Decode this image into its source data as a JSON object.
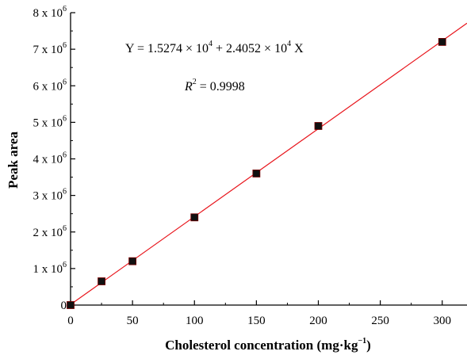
{
  "chart_data": {
    "type": "scatter",
    "xlabel": "Cholesterol concentration (mg·kg",
    "xlabel_sup": "−1",
    "xlabel_close": ")",
    "ylabel": "Peak area",
    "xlim": [
      0,
      320
    ],
    "ylim": [
      0,
      8000000
    ],
    "x_ticks": [
      0,
      50,
      100,
      150,
      200,
      250,
      300
    ],
    "x_tick_labels": [
      "0",
      "50",
      "100",
      "150",
      "200",
      "250",
      "300"
    ],
    "y_ticks": [
      0,
      1000000,
      2000000,
      3000000,
      4000000,
      5000000,
      6000000,
      7000000,
      8000000
    ],
    "y_tick_labels": [
      {
        "base": "0",
        "exp": ""
      },
      {
        "base": "1 x 10",
        "exp": "6"
      },
      {
        "base": "2 x 10",
        "exp": "6"
      },
      {
        "base": "3 x 10",
        "exp": "6"
      },
      {
        "base": "4 x 10",
        "exp": "6"
      },
      {
        "base": "5 x 10",
        "exp": "6"
      },
      {
        "base": "6 x 10",
        "exp": "6"
      },
      {
        "base": "7 x 10",
        "exp": "6"
      },
      {
        "base": "8 x 10",
        "exp": "6"
      }
    ],
    "points": [
      {
        "x": 0,
        "y": 0
      },
      {
        "x": 25,
        "y": 650000
      },
      {
        "x": 50,
        "y": 1200000
      },
      {
        "x": 100,
        "y": 2400000
      },
      {
        "x": 150,
        "y": 3600000
      },
      {
        "x": 200,
        "y": 4900000
      },
      {
        "x": 300,
        "y": 7200000
      }
    ],
    "fit": {
      "intercept": 15274,
      "slope": 24052
    },
    "annotations": {
      "equation": {
        "p1": "Y = 1.5274 × 10",
        "e1": "4",
        "p2": " + 2.4052 × 10",
        "e2": "4",
        "p3": " X"
      },
      "r2": {
        "r": "R",
        "e": "2",
        "rest": " = 0.9998"
      }
    },
    "grid": false,
    "colors": {
      "fit_line": "#e8141b",
      "marker": "#111111",
      "marker_edge": "#7a0000",
      "axis": "#000000"
    }
  }
}
